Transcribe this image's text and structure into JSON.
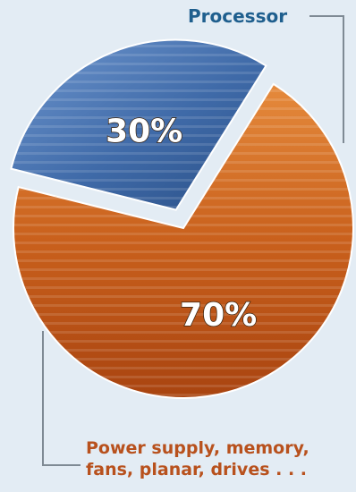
{
  "chart_data": {
    "type": "pie",
    "title": "",
    "slices": [
      {
        "label": "Power supply, memory, fans, planar, drives . . .",
        "value": 70,
        "value_label": "70%",
        "color": "#d0661f",
        "exploded": false
      },
      {
        "label": "Processor",
        "value": 30,
        "value_label": "30%",
        "color": "#4a76b4",
        "exploded": true
      }
    ],
    "legend": "none (callout labels)"
  },
  "callouts": {
    "processor": "Processor",
    "other_line1": "Power supply, memory,",
    "other_line2": "fans, planar, drives . . ."
  },
  "colors": {
    "background": "#e3ecf4",
    "processor_text": "#1f5f8e",
    "other_text": "#b8511d",
    "leader_line": "#7f8a94"
  }
}
